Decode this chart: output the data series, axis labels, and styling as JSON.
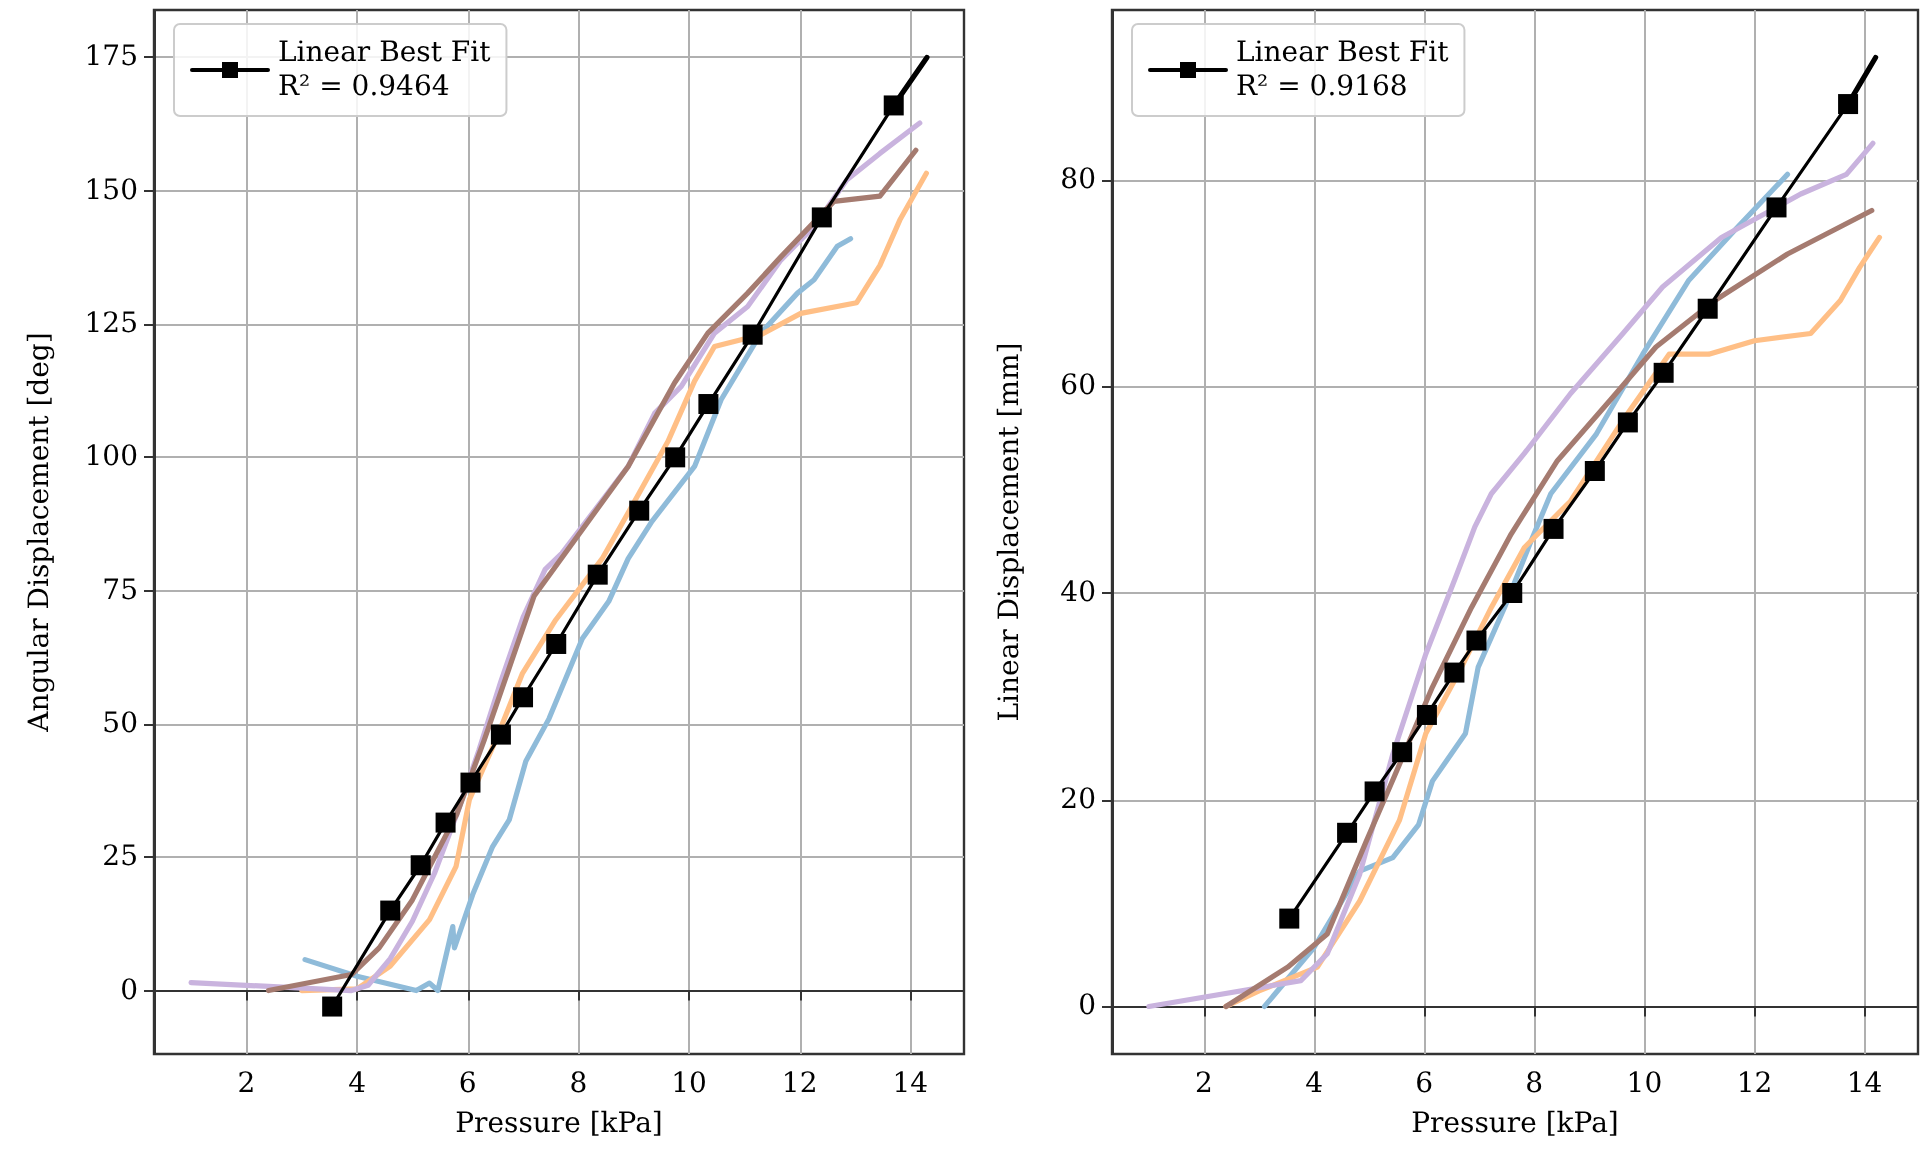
{
  "chart_data": [
    {
      "type": "line",
      "xlabel": "Pressure [kPa]",
      "ylabel": "Angular Displacement [deg]",
      "xlim": [
        0.33,
        14.97
      ],
      "ylim": [
        -11.9,
        183.9
      ],
      "xticks": [
        2,
        4,
        6,
        8,
        10,
        12,
        14
      ],
      "yticks": [
        0,
        25,
        50,
        75,
        100,
        125,
        150,
        175
      ],
      "grid": true,
      "legend": "top left",
      "marker": "none",
      "line_style": "solid",
      "series": [
        {
          "color": "#8fbbd9",
          "x": [
            3.06,
            4.0,
            5.07,
            5.31,
            5.46,
            5.73,
            5.76,
            6.09,
            6.45,
            6.75,
            7.05,
            7.47,
            8.07,
            8.55,
            8.9,
            9.33,
            10.1,
            10.58,
            11.3,
            11.96,
            12.26,
            12.68,
            12.92
          ],
          "values": [
            5.8,
            2.7,
            0,
            1.4,
            0,
            12,
            8,
            18,
            27,
            32,
            43,
            51,
            66,
            73,
            81,
            88,
            98.3,
            110.8,
            123.3,
            130.8,
            133.3,
            139.6,
            141
          ]
        },
        {
          "color": "#ffbf86",
          "x": [
            3.0,
            4.0,
            4.6,
            5.31,
            5.79,
            6.03,
            6.51,
            6.99,
            7.59,
            8.43,
            8.9,
            9.62,
            10.1,
            10.46,
            11.3,
            12.02,
            13.03,
            13.45,
            13.81,
            14.29
          ],
          "values": [
            0,
            0.3,
            4.6,
            13.3,
            23.3,
            35.8,
            47,
            59.5,
            69.5,
            81,
            89.6,
            103,
            114.3,
            120.8,
            123,
            127,
            129,
            136,
            144.5,
            153.3
          ]
        },
        {
          "color": "#c9b3de",
          "x": [
            1.0,
            3.9,
            4.2,
            4.6,
            5.0,
            5.4,
            5.8,
            6.2,
            6.6,
            7.0,
            7.4,
            7.7,
            8.9,
            9.38,
            9.86,
            10.46,
            11.06,
            11.66,
            12.26,
            12.85,
            13.45,
            14.17
          ],
          "values": [
            1.5,
            0,
            1,
            6,
            13,
            22,
            33,
            45,
            58,
            70,
            79,
            82,
            98.3,
            108.3,
            113.3,
            123.3,
            128.3,
            137,
            143.3,
            152,
            157,
            162.7
          ]
        },
        {
          "color": "#a57b70",
          "x": [
            2.4,
            3.9,
            4.4,
            5.0,
            5.4,
            5.8,
            6.3,
            6.8,
            7.2,
            8.9,
            9.74,
            10.34,
            11.06,
            11.66,
            12.62,
            13.45,
            14.1
          ],
          "values": [
            0,
            3,
            8,
            17,
            25,
            33,
            47,
            62,
            74,
            98.3,
            114,
            123.3,
            130.8,
            137.6,
            148,
            149,
            157.6
          ]
        },
        {
          "name": "Linear Best Fit\nR² = 0.9464",
          "color": "#000000",
          "marker": "square",
          "x": [
            3.55,
            4.6,
            5.15,
            5.6,
            6.05,
            6.6,
            7.0,
            7.6,
            8.35,
            9.1,
            9.75,
            10.35,
            11.15,
            12.4,
            13.7
          ],
          "values": [
            -3,
            15,
            23.5,
            31.5,
            39,
            48,
            55,
            65,
            78,
            90,
            100,
            110,
            123,
            145,
            166
          ]
        },
        {
          "color": "#000000",
          "x": [
            13.7,
            14.3
          ],
          "values": [
            166,
            175
          ]
        }
      ]
    },
    {
      "type": "line",
      "xlabel": "Pressure [kPa]",
      "ylabel": "Linear Displacement [mm]",
      "xlim": [
        0.33,
        14.97
      ],
      "ylim": [
        -4.6,
        96.4
      ],
      "xticks": [
        2,
        4,
        6,
        8,
        10,
        12,
        14
      ],
      "yticks": [
        0,
        20,
        40,
        60,
        80
      ],
      "grid": true,
      "legend": "top left",
      "marker": "none",
      "line_style": "solid",
      "series": [
        {
          "color": "#8fbbd9",
          "x": [
            3.1,
            4.0,
            4.83,
            5.43,
            5.9,
            6.15,
            6.75,
            6.98,
            7.46,
            7.94,
            8.3,
            9.13,
            9.97,
            10.8,
            11.64,
            12.6
          ],
          "values": [
            0,
            5.7,
            13.1,
            14.4,
            17.6,
            21.8,
            26.4,
            32.8,
            38.6,
            45,
            49.6,
            55.4,
            63.1,
            70.2,
            75.1,
            80.5
          ]
        },
        {
          "color": "#ffbf86",
          "x": [
            2.4,
            3.0,
            4.06,
            4.83,
            5.55,
            6.03,
            6.62,
            7.22,
            7.82,
            8.66,
            9.61,
            10.45,
            11.17,
            12.0,
            13.02,
            13.56,
            13.91,
            14.27
          ],
          "values": [
            0,
            1.5,
            3.8,
            10.2,
            18,
            26.4,
            32.2,
            38.6,
            44.4,
            48.9,
            56.7,
            63.1,
            63.1,
            64.4,
            65.1,
            68.3,
            71.5,
            74.4
          ]
        },
        {
          "color": "#c9b3de",
          "x": [
            1.0,
            3.76,
            4.24,
            4.83,
            5.43,
            6.03,
            6.57,
            6.92,
            7.22,
            7.82,
            8.66,
            9.61,
            10.33,
            11.4,
            12.84,
            13.67,
            14.15
          ],
          "values": [
            0,
            2.5,
            5.1,
            12.8,
            24.4,
            34.1,
            41.5,
            46.4,
            49.6,
            53.5,
            59.3,
            65.1,
            69.6,
            74.4,
            78.6,
            80.5,
            83.5
          ]
        },
        {
          "color": "#a57b70",
          "x": [
            2.4,
            3.52,
            4.24,
            4.95,
            5.43,
            6.15,
            6.86,
            7.58,
            8.42,
            9.37,
            10.21,
            11.28,
            12.6,
            14.13
          ],
          "values": [
            0,
            3.8,
            7,
            16,
            21.9,
            30.9,
            38.6,
            45.7,
            52.8,
            58.6,
            63.8,
            68.3,
            72.8,
            77
          ]
        },
        {
          "name": "Linear Best Fit\nR² = 0.9168",
          "color": "#000000",
          "marker": "square",
          "x": [
            3.55,
            4.6,
            5.1,
            5.6,
            6.05,
            6.55,
            6.95,
            7.6,
            8.35,
            9.1,
            9.7,
            10.35,
            11.15,
            12.4,
            13.7
          ],
          "values": [
            8.5,
            16.8,
            20.8,
            24.6,
            28.2,
            32.3,
            35.4,
            40,
            46.2,
            51.8,
            56.5,
            61.3,
            67.5,
            77.3,
            87.3
          ]
        },
        {
          "color": "#000000",
          "x": [
            13.7,
            14.2
          ],
          "values": [
            87.3,
            91.8
          ]
        }
      ]
    }
  ]
}
